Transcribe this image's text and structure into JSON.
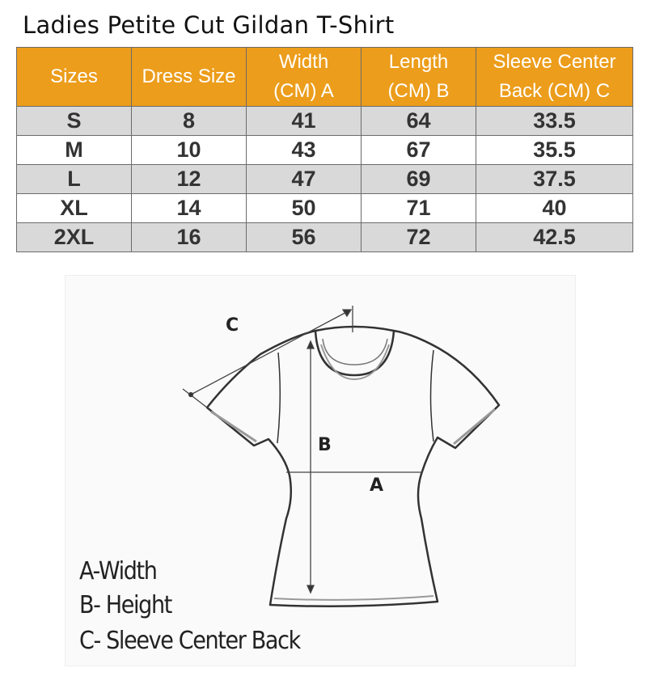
{
  "title": "Ladies Petite Cut Gildan T-Shirt",
  "table": {
    "header_color": "#ec9d1b",
    "headers": [
      "Sizes",
      "Dress Size",
      "Width (CM) A",
      "Length (CM) B",
      "Sleeve Center Back (CM) C"
    ],
    "header_lines": [
      [
        "Sizes"
      ],
      [
        "Dress Size"
      ],
      [
        "Width",
        "(CM) A"
      ],
      [
        "Length",
        "(CM) B"
      ],
      [
        "Sleeve Center",
        "Back (CM) C"
      ]
    ],
    "rows": [
      [
        "S",
        "8",
        "41",
        "64",
        "33.5"
      ],
      [
        "M",
        "10",
        "43",
        "67",
        "35.5"
      ],
      [
        "L",
        "12",
        "47",
        "69",
        "37.5"
      ],
      [
        "XL",
        "14",
        "50",
        "71",
        "40"
      ],
      [
        "2XL",
        "16",
        "56",
        "72",
        "42.5"
      ]
    ]
  },
  "diagram": {
    "labels": {
      "a": "A",
      "b": "B",
      "c": "C"
    },
    "legend": [
      "A-Width",
      "B- Height",
      "C- Sleeve Center Back"
    ]
  }
}
